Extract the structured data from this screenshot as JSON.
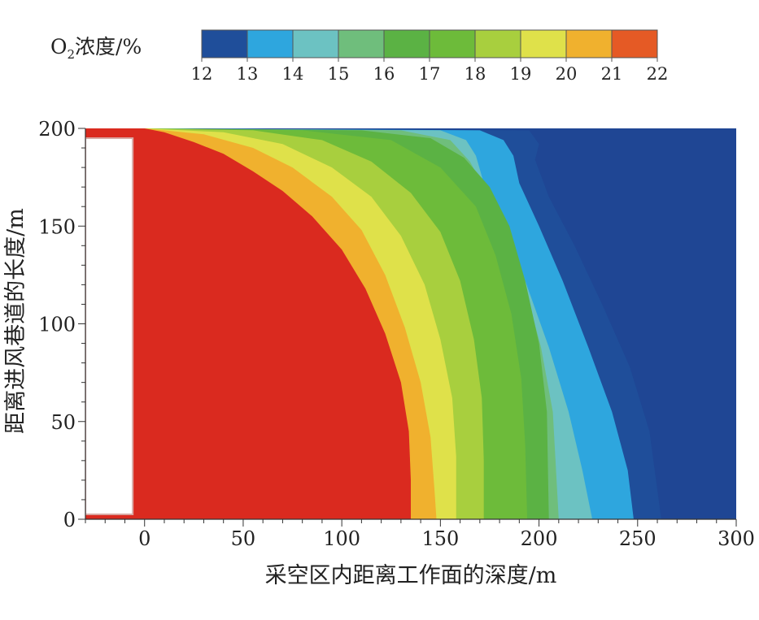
{
  "chart_data": {
    "type": "heatmap",
    "colorbar": {
      "title_main": "O",
      "title_sub": "2",
      "title_rest": "浓度/%",
      "ticks": [
        "12",
        "13",
        "14",
        "15",
        "16",
        "17",
        "18",
        "19",
        "20",
        "21",
        "22"
      ],
      "levels": [
        {
          "range": [
            12,
            13
          ],
          "color": "#1f4e9a"
        },
        {
          "range": [
            13,
            14
          ],
          "color": "#2ea6de"
        },
        {
          "range": [
            14,
            15
          ],
          "color": "#6cc2c2"
        },
        {
          "range": [
            15,
            16
          ],
          "color": "#6fbe7c"
        },
        {
          "range": [
            16,
            17
          ],
          "color": "#5bb244"
        },
        {
          "range": [
            17,
            18
          ],
          "color": "#6dbb3a"
        },
        {
          "range": [
            18,
            19
          ],
          "color": "#a8cf3e"
        },
        {
          "range": [
            19,
            20
          ],
          "color": "#dfe14a"
        },
        {
          "range": [
            20,
            21
          ],
          "color": "#f0b12e"
        },
        {
          "range": [
            21,
            22
          ],
          "color": "#e55a25"
        }
      ],
      "inner_color": "#da2a1f",
      "outer_color": "#1f4694"
    },
    "xlabel": "采空区内距离工作面的深度/m",
    "ylabel": "距离进风巷道的长度/m",
    "xlim": [
      -30,
      300
    ],
    "ylim": [
      0,
      200
    ],
    "x_ticks": [
      "0",
      "50",
      "100",
      "150",
      "200",
      "250",
      "300"
    ],
    "y_ticks": [
      "0",
      "50",
      "100",
      "150",
      "200"
    ],
    "contours": [
      {
        "level": 21,
        "points": [
          [
            0,
            200
          ],
          [
            10,
            198
          ],
          [
            25,
            193
          ],
          [
            40,
            187
          ],
          [
            55,
            178
          ],
          [
            70,
            168
          ],
          [
            85,
            155
          ],
          [
            100,
            138
          ],
          [
            112,
            118
          ],
          [
            122,
            95
          ],
          [
            130,
            70
          ],
          [
            134,
            45
          ],
          [
            135,
            20
          ],
          [
            135,
            0
          ]
        ]
      },
      {
        "level": 20,
        "points": [
          [
            0,
            200
          ],
          [
            30,
            197
          ],
          [
            55,
            190
          ],
          [
            75,
            180
          ],
          [
            95,
            165
          ],
          [
            110,
            148
          ],
          [
            122,
            125
          ],
          [
            132,
            98
          ],
          [
            140,
            70
          ],
          [
            145,
            42
          ],
          [
            147,
            15
          ],
          [
            148,
            0
          ]
        ]
      },
      {
        "level": 19,
        "points": [
          [
            0,
            200
          ],
          [
            40,
            198
          ],
          [
            70,
            192
          ],
          [
            95,
            180
          ],
          [
            115,
            165
          ],
          [
            130,
            145
          ],
          [
            142,
            120
          ],
          [
            150,
            92
          ],
          [
            156,
            62
          ],
          [
            158,
            32
          ],
          [
            158,
            0
          ]
        ]
      },
      {
        "level": 18,
        "points": [
          [
            0,
            200
          ],
          [
            55,
            199
          ],
          [
            90,
            194
          ],
          [
            115,
            183
          ],
          [
            135,
            167
          ],
          [
            150,
            147
          ],
          [
            160,
            122
          ],
          [
            167,
            92
          ],
          [
            171,
            62
          ],
          [
            172,
            30
          ],
          [
            172,
            0
          ]
        ]
      },
      {
        "level": 17,
        "points": [
          [
            0,
            200
          ],
          [
            80,
            199
          ],
          [
            125,
            194
          ],
          [
            150,
            180
          ],
          [
            168,
            160
          ],
          [
            178,
            135
          ],
          [
            186,
            105
          ],
          [
            191,
            72
          ],
          [
            193,
            38
          ],
          [
            194,
            0
          ]
        ]
      },
      {
        "level": 16,
        "points": [
          [
            0,
            200
          ],
          [
            110,
            199
          ],
          [
            145,
            195
          ],
          [
            162,
            185
          ],
          [
            175,
            170
          ],
          [
            185,
            150
          ],
          [
            193,
            122
          ],
          [
            200,
            90
          ],
          [
            204,
            55
          ],
          [
            205,
            0
          ]
        ]
      },
      {
        "level": 15,
        "points": [
          [
            0,
            200
          ],
          [
            130,
            199
          ],
          [
            155,
            194
          ],
          [
            165,
            183
          ],
          [
            172,
            170
          ],
          [
            182,
            150
          ],
          [
            192,
            122
          ],
          [
            201,
            88
          ],
          [
            207,
            55
          ],
          [
            210,
            0
          ]
        ]
      },
      {
        "level": 14,
        "points": [
          [
            0,
            200
          ],
          [
            150,
            199
          ],
          [
            163,
            194
          ],
          [
            168,
            186
          ],
          [
            172,
            172
          ],
          [
            182,
            150
          ],
          [
            193,
            122
          ],
          [
            205,
            88
          ],
          [
            215,
            55
          ],
          [
            222,
            25
          ],
          [
            227,
            0
          ]
        ]
      },
      {
        "level": 13,
        "points": [
          [
            0,
            200
          ],
          [
            170,
            199
          ],
          [
            182,
            194
          ],
          [
            187,
            186
          ],
          [
            190,
            172
          ],
          [
            200,
            150
          ],
          [
            212,
            122
          ],
          [
            225,
            88
          ],
          [
            237,
            55
          ],
          [
            245,
            25
          ],
          [
            248,
            0
          ]
        ]
      },
      {
        "level": 12,
        "points": [
          [
            0,
            200
          ],
          [
            195,
            199
          ],
          [
            200,
            192
          ],
          [
            198,
            184
          ],
          [
            205,
            165
          ],
          [
            218,
            140
          ],
          [
            232,
            110
          ],
          [
            246,
            78
          ],
          [
            256,
            45
          ],
          [
            260,
            15
          ],
          [
            262,
            0
          ]
        ]
      }
    ]
  }
}
